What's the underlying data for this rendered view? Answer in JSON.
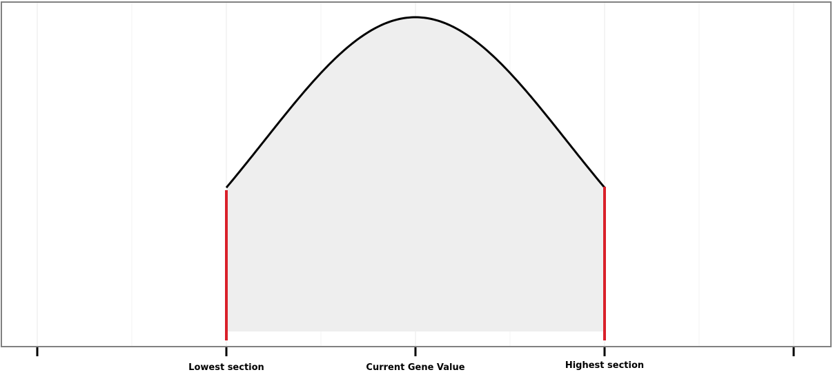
{
  "chart_data": {
    "type": "area",
    "title": "",
    "xlabel": "",
    "ylabel": "",
    "curve": "normal-distribution",
    "mean": 0,
    "sd": 1,
    "xlim": [
      -2.5,
      2.5
    ],
    "grid": true,
    "grid_x": [
      -2.5,
      -1.25,
      0,
      1.25,
      2.5
    ],
    "tick_positions": [
      -2.5,
      -1.25,
      0,
      1.25,
      2.5
    ],
    "tick_labels": [
      {
        "x": -1.25,
        "label": "Lowest section"
      },
      {
        "x": 0,
        "label": "Current Gene Value"
      },
      {
        "x": 1.25,
        "label": "Highest section"
      }
    ],
    "bounds": [
      {
        "name": "Lowest section",
        "x": -1.25
      },
      {
        "name": "Highest section",
        "x": 1.25
      }
    ],
    "colors": {
      "fill": "#eeeeee",
      "curve": "#000000",
      "bounds": "#d9202a",
      "grid": "#e8e8e8",
      "frame": "#808080"
    }
  }
}
